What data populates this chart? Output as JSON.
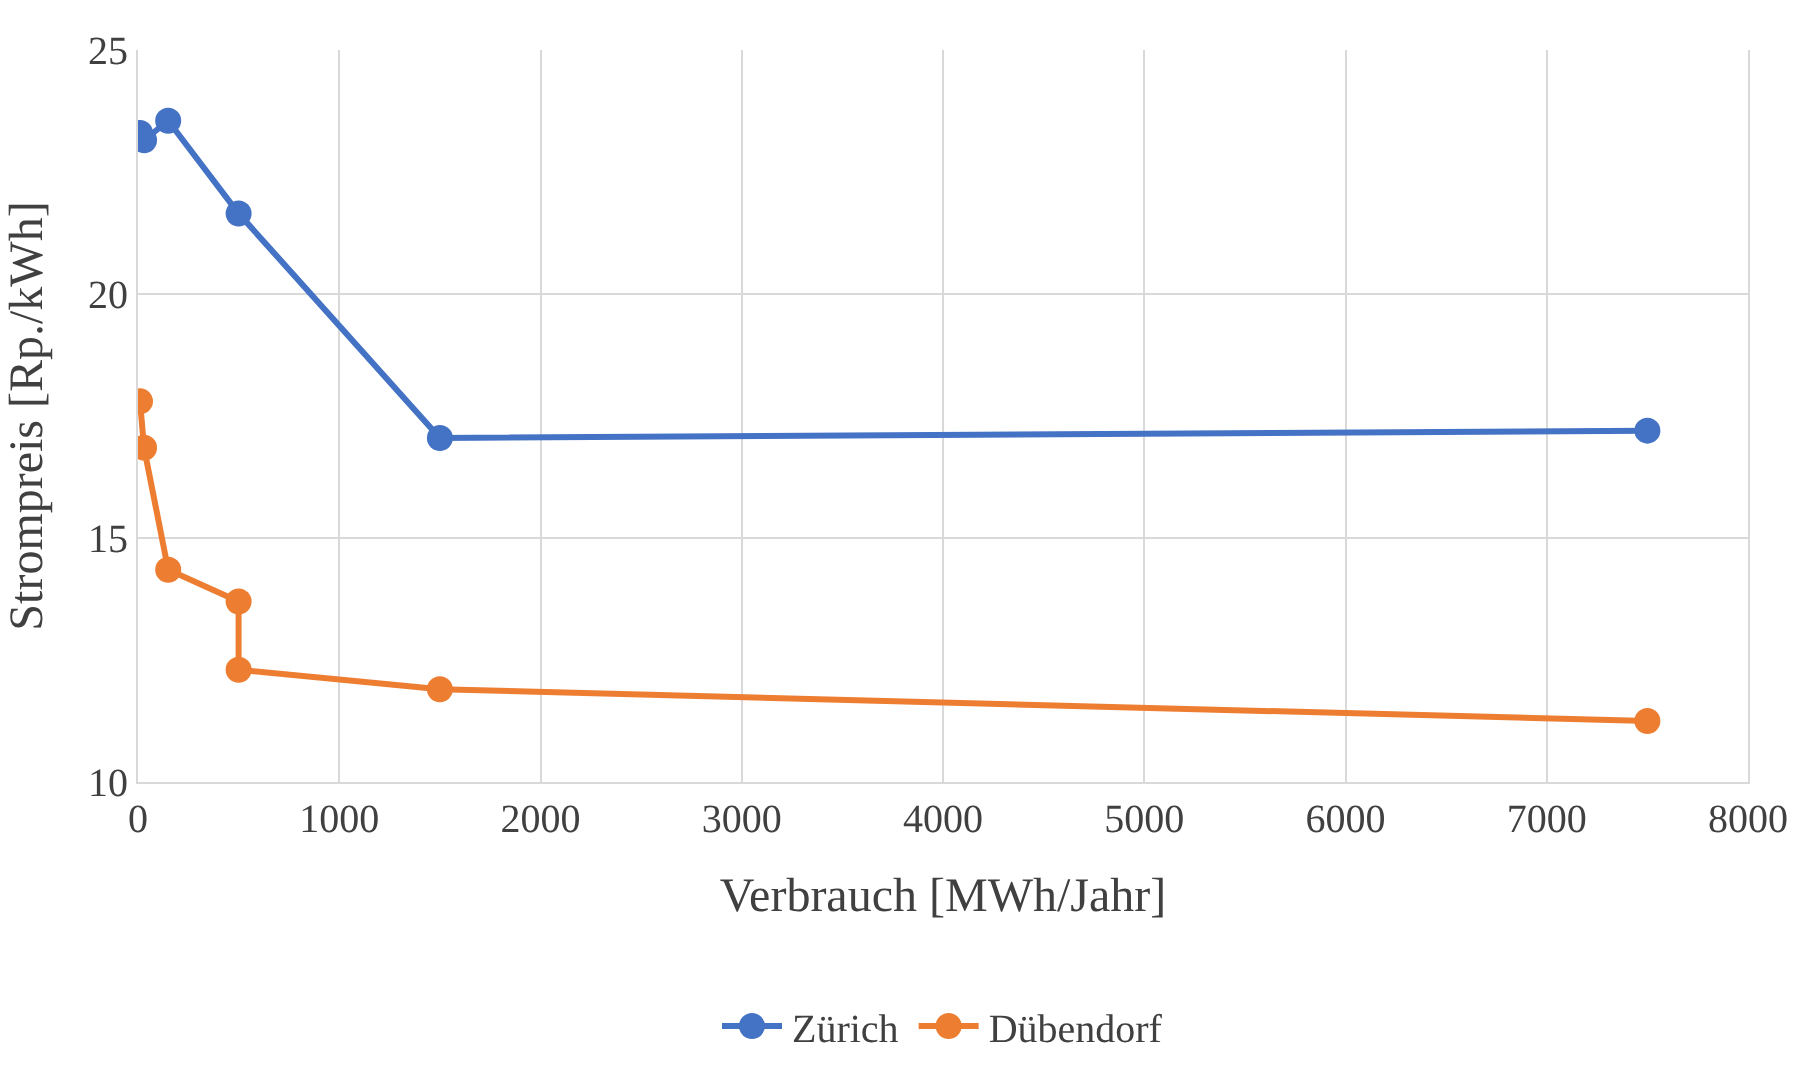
{
  "chart_data": {
    "type": "line",
    "xlabel": "Verbrauch [MWh/Jahr]",
    "ylabel": "Strompreis [Rp./kWh]",
    "xlim": [
      0,
      8000
    ],
    "xticks": [
      0,
      1000,
      2000,
      3000,
      4000,
      5000,
      6000,
      7000,
      8000
    ],
    "ylim": [
      10,
      25
    ],
    "yticks": [
      10,
      15,
      20,
      25
    ],
    "grid": true,
    "legend": "bottom",
    "marker": "circle",
    "line_style": "solid",
    "series": [
      {
        "name": "Zürich",
        "color": "#4472c4",
        "x": [
          10,
          30,
          150,
          500,
          1500,
          7500
        ],
        "values": [
          23.3,
          23.15,
          23.55,
          21.65,
          17.05,
          17.2
        ]
      },
      {
        "name": "Dübendorf",
        "color": "#ed7d31",
        "x": [
          10,
          30,
          150,
          500,
          500,
          1500,
          7500
        ],
        "values": [
          17.8,
          16.85,
          14.35,
          13.7,
          12.3,
          11.9,
          11.25
        ]
      }
    ]
  }
}
